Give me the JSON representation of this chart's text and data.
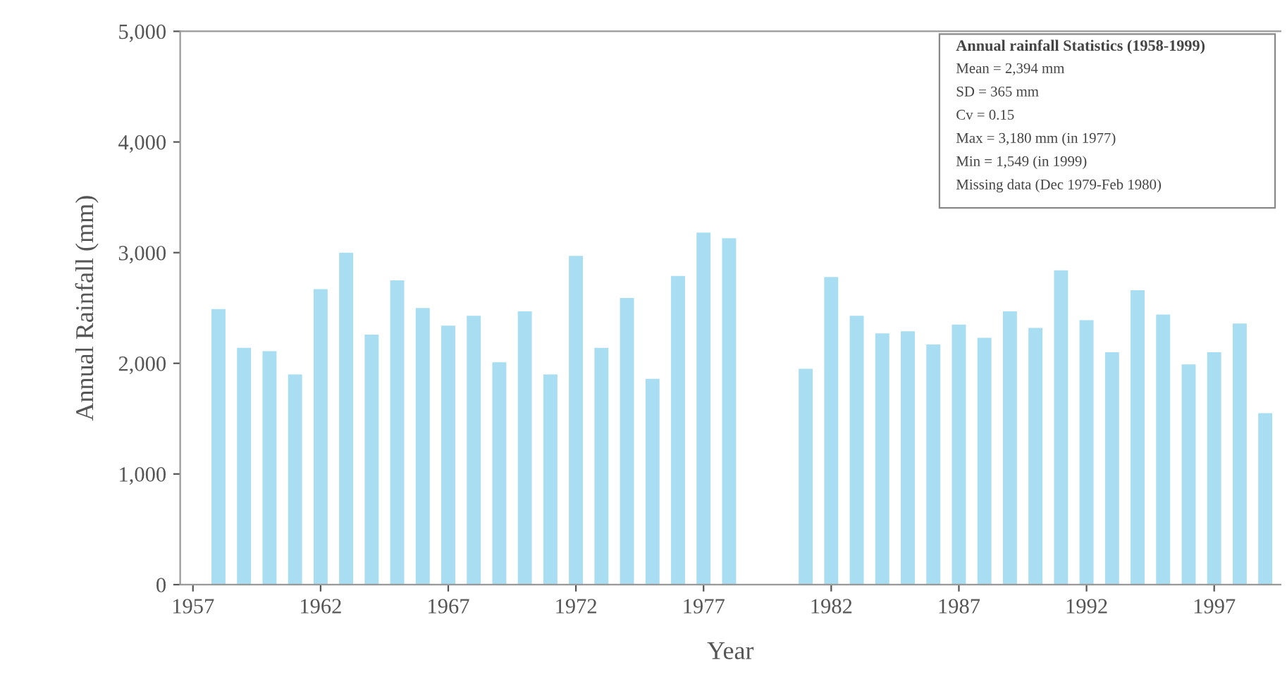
{
  "chart_data": {
    "type": "bar",
    "xlabel": "Year",
    "ylabel": "Annual Rainfall (mm)",
    "x": [
      1958,
      1959,
      1960,
      1961,
      1962,
      1963,
      1964,
      1965,
      1966,
      1967,
      1968,
      1969,
      1970,
      1971,
      1972,
      1973,
      1974,
      1975,
      1976,
      1977,
      1978,
      1981,
      1982,
      1983,
      1984,
      1985,
      1986,
      1987,
      1988,
      1989,
      1990,
      1991,
      1992,
      1993,
      1994,
      1995,
      1996,
      1997,
      1998,
      1999
    ],
    "values": [
      2490,
      2140,
      2110,
      1900,
      2670,
      3000,
      2260,
      2750,
      2500,
      2340,
      2430,
      2010,
      2470,
      1900,
      2970,
      2140,
      2590,
      1860,
      2790,
      3180,
      3130,
      1950,
      2780,
      2430,
      2270,
      2290,
      2170,
      2350,
      2230,
      2470,
      2320,
      2840,
      2390,
      2100,
      2660,
      2440,
      1990,
      2100,
      2360,
      1549
    ],
    "color": "#a9def2",
    "xlim": [
      1956.5,
      1999.6
    ],
    "xticks": [
      1957,
      1962,
      1967,
      1972,
      1977,
      1982,
      1987,
      1992,
      1997
    ],
    "ylim": [
      0,
      5000
    ],
    "yticks": [
      0,
      {
        "value": 1000,
        "label": "1,000"
      },
      {
        "value": 2000,
        "label": "2,000"
      },
      {
        "value": 3000,
        "label": "3,000"
      },
      {
        "value": 4000,
        "label": "4,000"
      },
      {
        "value": 5000,
        "label": "5,000"
      }
    ],
    "grid": false,
    "legend": false,
    "annotations": [
      "Annual rainfall Statistics (1958-1999)",
      "Mean = 2,394 mm",
      "SD = 365 mm",
      "Cv = 0.15",
      "Max = 3,180 mm (in 1977)",
      "Min = 1,549 (in 1999)",
      "Missing data (Dec 1979-Feb 1980)"
    ]
  }
}
